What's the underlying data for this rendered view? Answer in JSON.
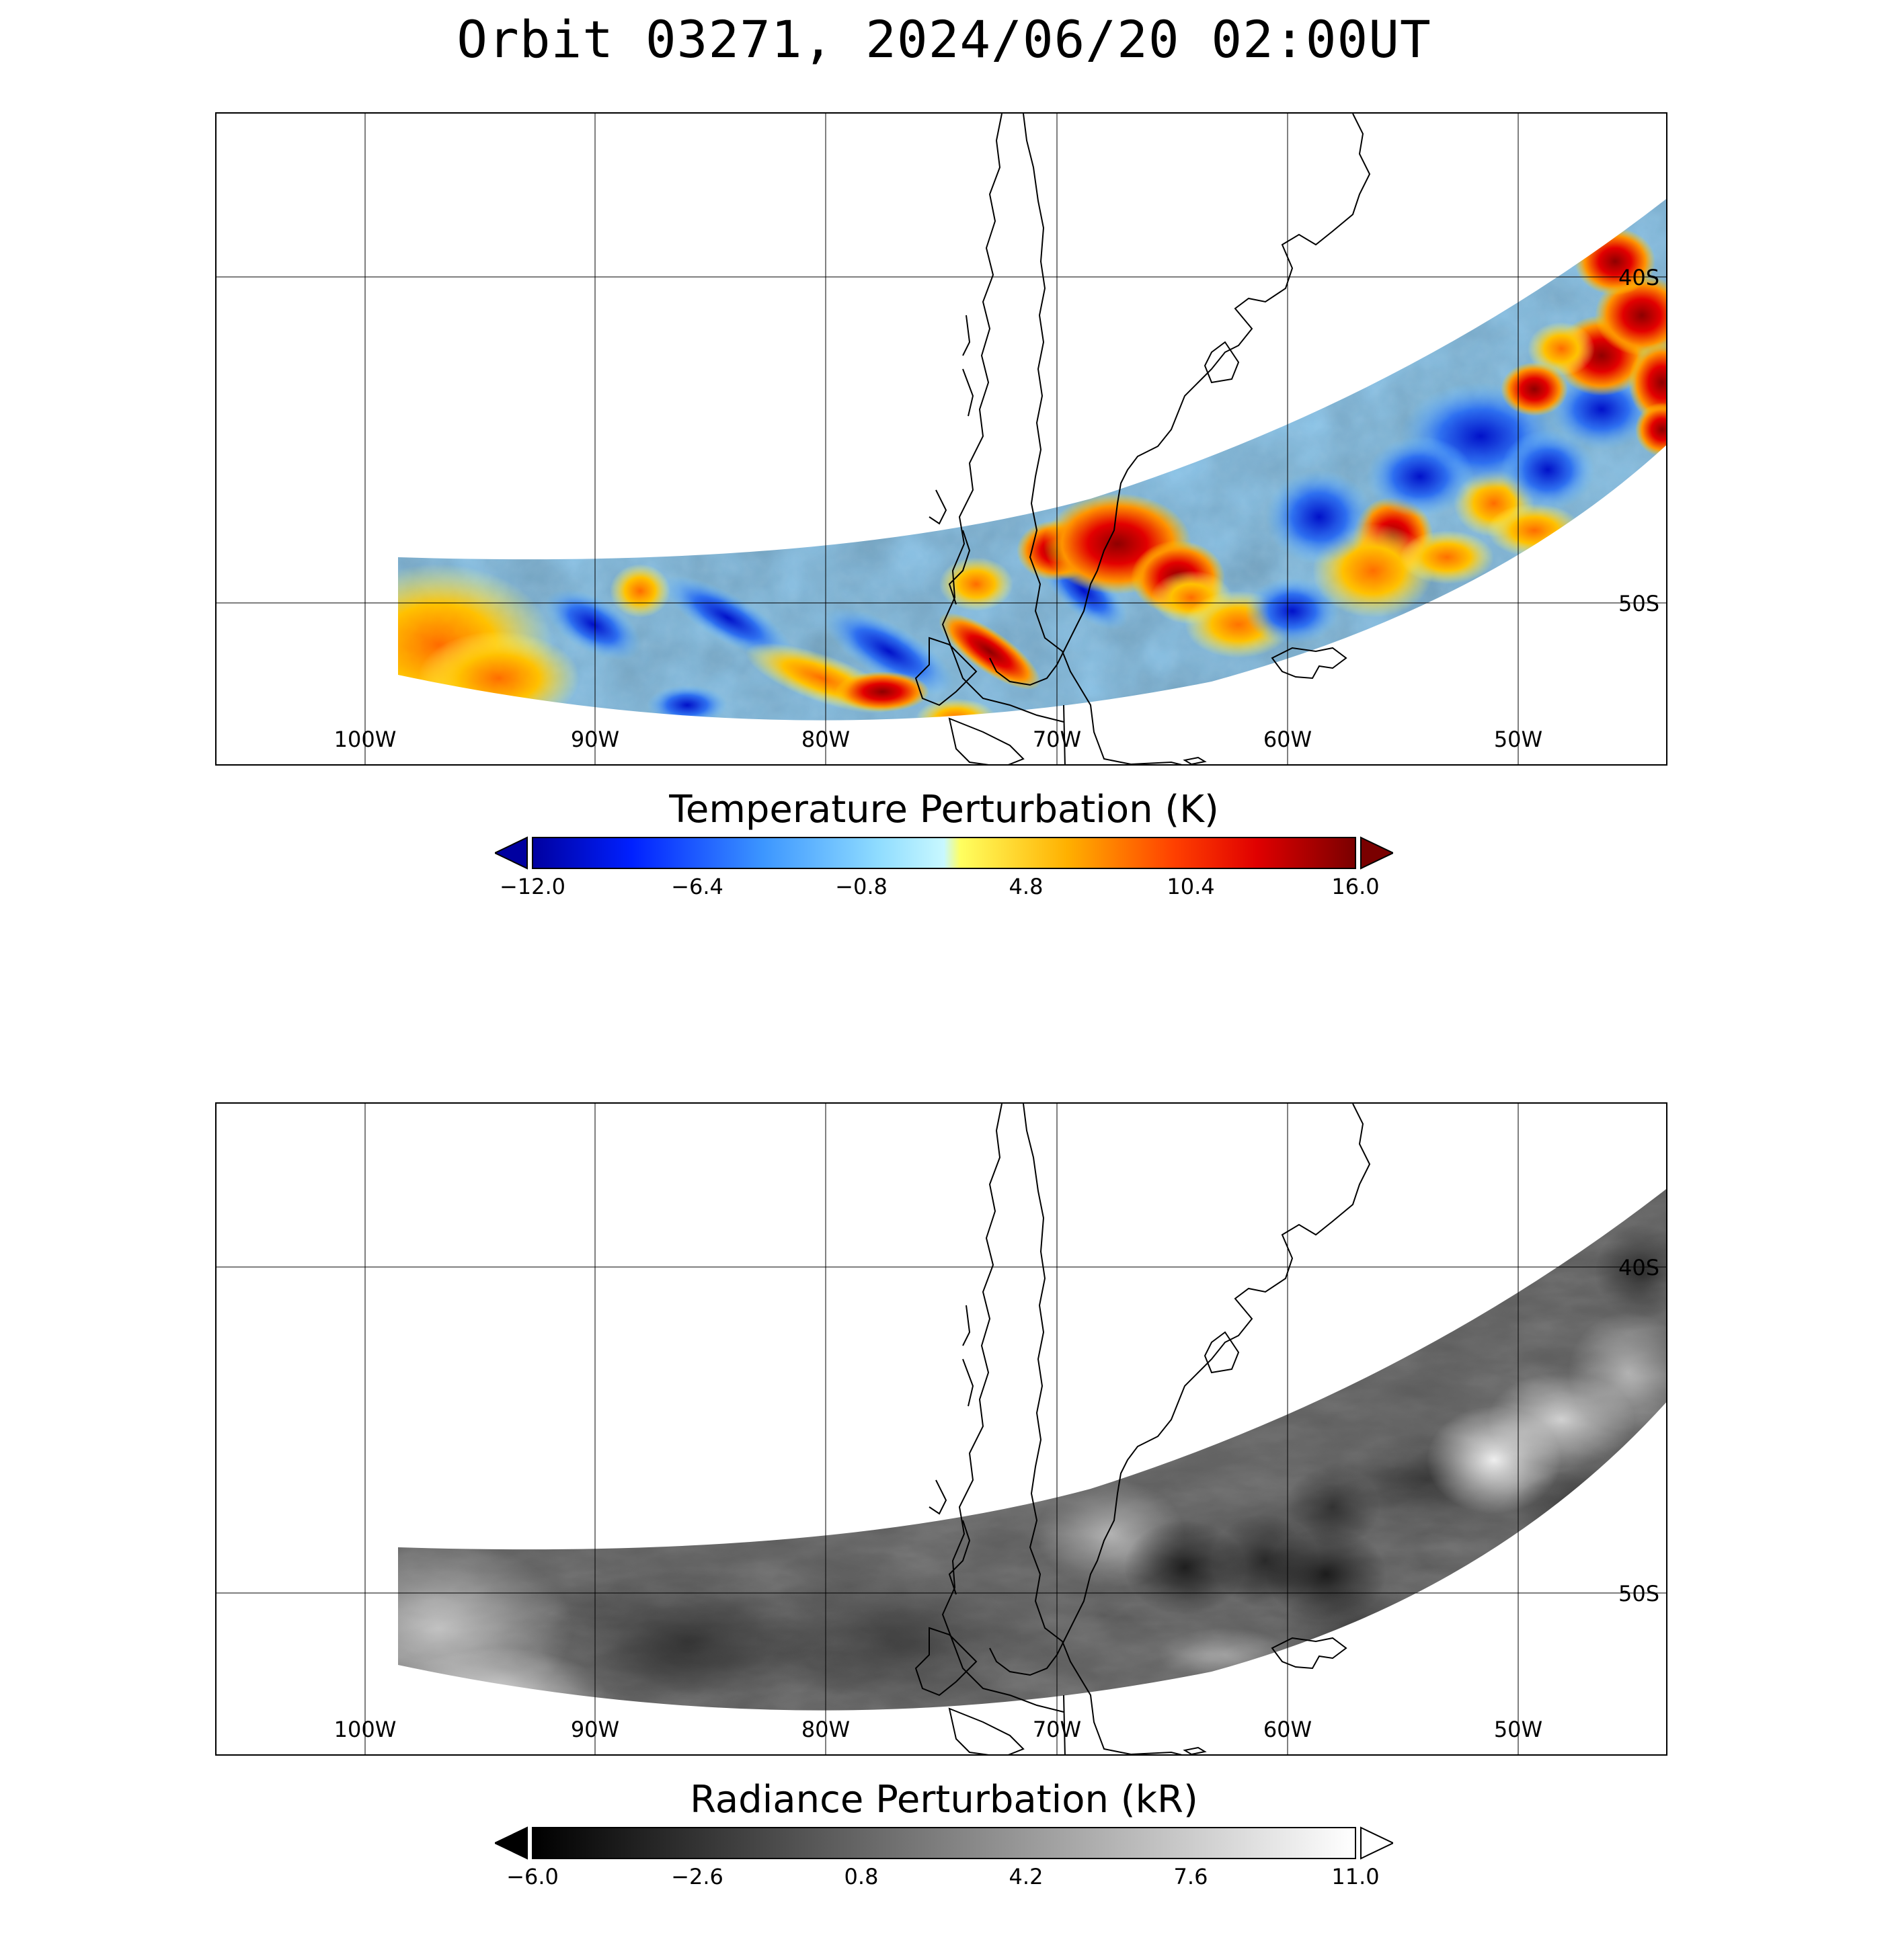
{
  "title": "Orbit 03271, 2024/06/20 02:00UT",
  "map": {
    "longitude_labels": [
      "100W",
      "90W",
      "80W",
      "70W",
      "60W",
      "50W"
    ],
    "latitude_labels": [
      "40S",
      "50S"
    ]
  },
  "panels": [
    {
      "id": "temperature",
      "colorbar_label": "Temperature Perturbation (K)",
      "colorbar_ticks": [
        "−12.0",
        "−6.4",
        "−0.8",
        "4.8",
        "10.4",
        "16.0"
      ],
      "colormap": [
        "#00008b",
        "#0000ff",
        "#1e90ff",
        "#87cefa",
        "#b0f0ff",
        "#ffff66",
        "#ffcc00",
        "#ff8c00",
        "#ff0000",
        "#8b0000"
      ]
    },
    {
      "id": "radiance",
      "colorbar_label": "Radiance Perturbation (kR)",
      "colorbar_ticks": [
        "−6.0",
        "−2.6",
        "0.8",
        "4.2",
        "7.6",
        "11.0"
      ],
      "colormap": [
        "#000000",
        "#ffffff"
      ]
    }
  ]
}
